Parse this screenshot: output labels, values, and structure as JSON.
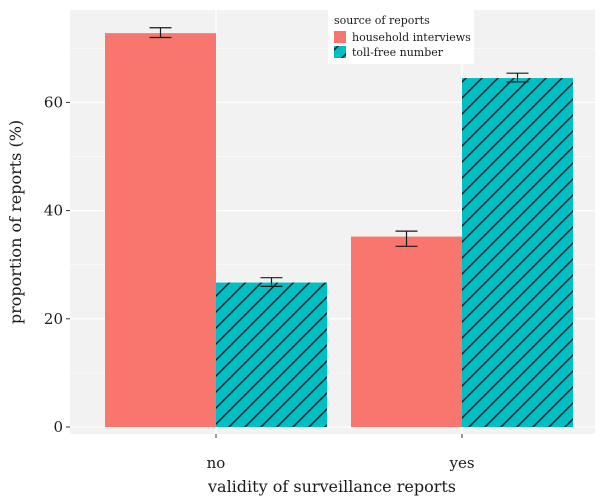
{
  "chart_data": {
    "type": "bar",
    "xlabel": "validity of surveillance reports",
    "ylabel": "proportion of reports (%)",
    "categories": [
      "no",
      "yes"
    ],
    "ylim": [
      0,
      75
    ],
    "yticks": [
      0,
      20,
      40,
      60
    ],
    "grid": true,
    "legend": {
      "title": "source of reports",
      "placement": "top-right inside"
    },
    "series": [
      {
        "name": "household interviews",
        "color": "#F8766D",
        "pattern": "solid",
        "values": [
          72.8,
          35.2
        ],
        "error_low": [
          72.0,
          33.4
        ],
        "error_high": [
          73.8,
          36.2
        ]
      },
      {
        "name": "toll-free number",
        "color": "#00BFC4",
        "pattern": "diagonal-stripes",
        "values": [
          26.7,
          64.5
        ],
        "error_low": [
          26.0,
          63.8
        ],
        "error_high": [
          27.6,
          65.4
        ]
      }
    ]
  }
}
